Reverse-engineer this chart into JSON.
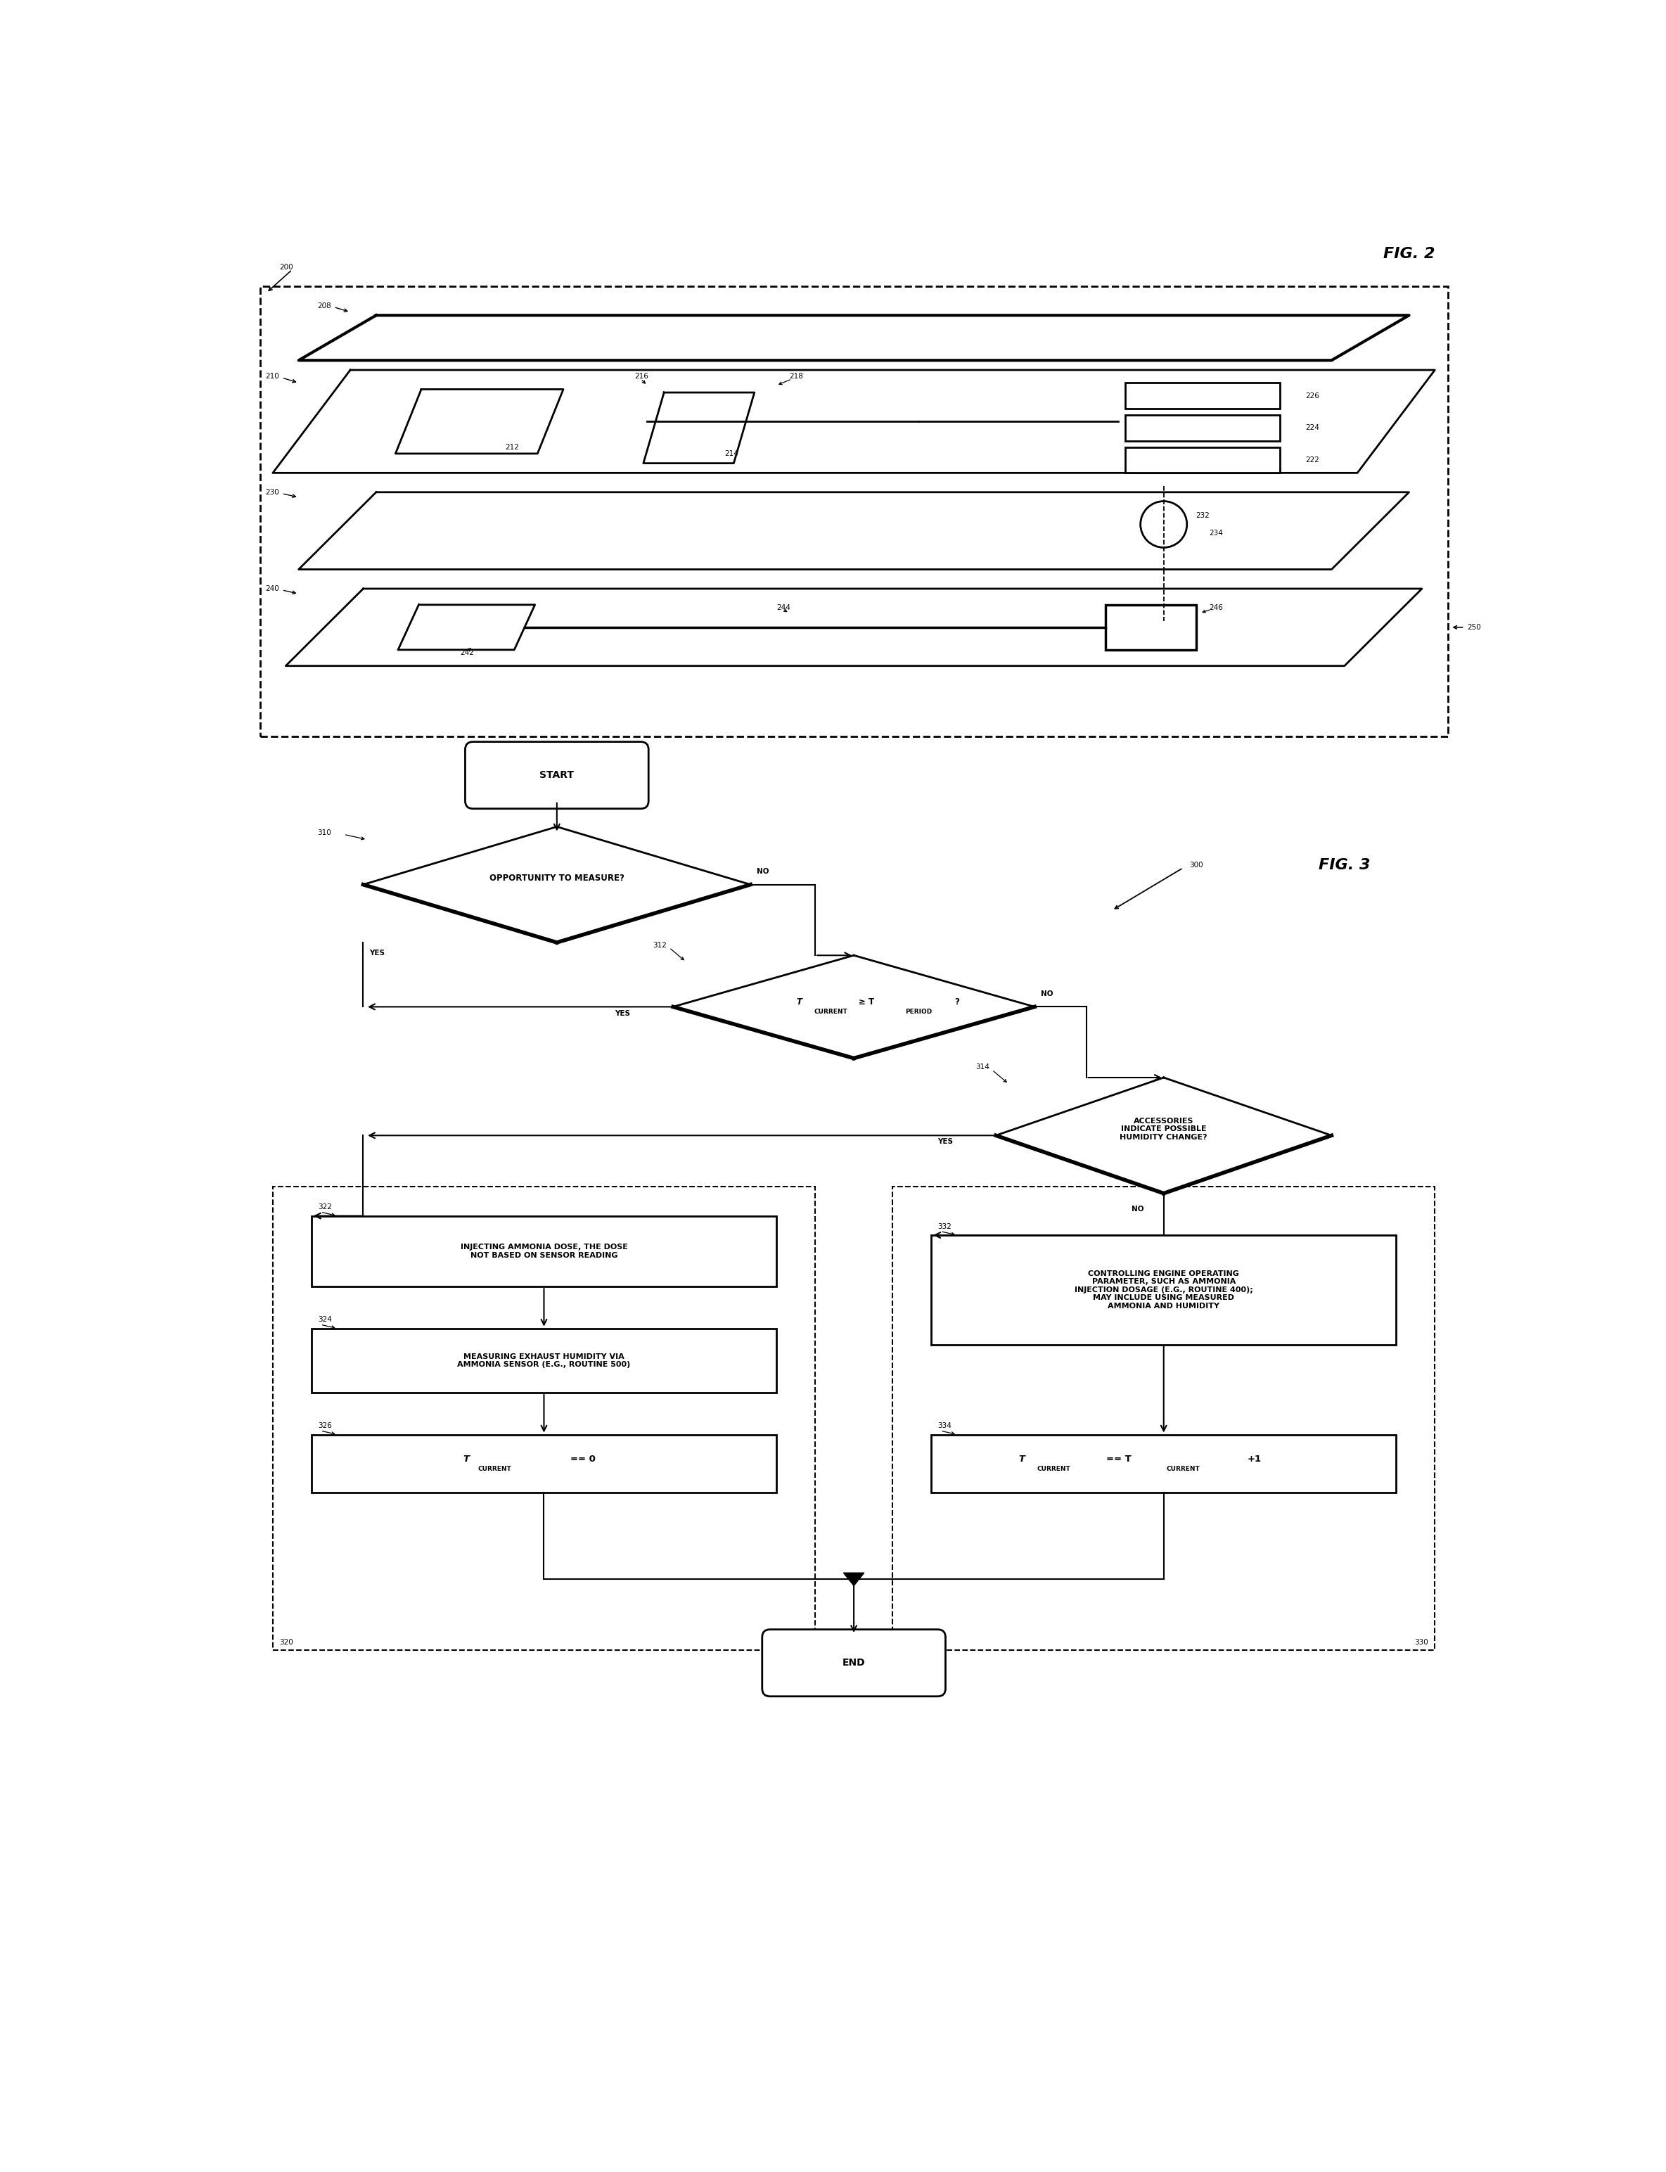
{
  "fig_width": 23.69,
  "fig_height": 30.88,
  "bg_color": "#ffffff",
  "fig2_label": "FIG. 2",
  "fig3_label": "FIG. 3",
  "ref_200": "200",
  "ref_208": "208",
  "ref_210": "210",
  "ref_212": "212",
  "ref_214": "214",
  "ref_216": "216",
  "ref_218": "218",
  "ref_222": "222",
  "ref_224": "224",
  "ref_226": "226",
  "ref_230": "230",
  "ref_232": "232",
  "ref_234": "234",
  "ref_240": "240",
  "ref_242": "242",
  "ref_244": "244",
  "ref_246": "246",
  "ref_250": "250",
  "ref_300": "300",
  "ref_310": "310",
  "ref_312": "312",
  "ref_314": "314",
  "ref_322": "322",
  "ref_324": "324",
  "ref_326": "326",
  "ref_332": "332",
  "ref_334": "334",
  "ref_320": "320",
  "ref_330": "330",
  "start_label": "START",
  "end_label": "END",
  "d310_text": "OPPORTUNITY TO MEASURE?",
  "d314_text": "ACCESSORIES\nINDICATE POSSIBLE\nHUMIDITY CHANGE?",
  "b322_text": "INJECTING AMMONIA DOSE, THE DOSE\nNOT BASED ON SENSOR READING",
  "b324_text": "MEASURING EXHAUST HUMIDITY VIA\nAMMONIA SENSOR (E.G., ROUTINE 500)",
  "b332_text": "CONTROLLING ENGINE OPERATING\nPARAMETER, SUCH AS AMMONIA\nINJECTION DOSAGE (E.G., ROUTINE 400);\nMAY INCLUDE USING MEASURED\nAMMONIA AND HUMIDITY",
  "yes_label": "YES",
  "no_label": "NO"
}
